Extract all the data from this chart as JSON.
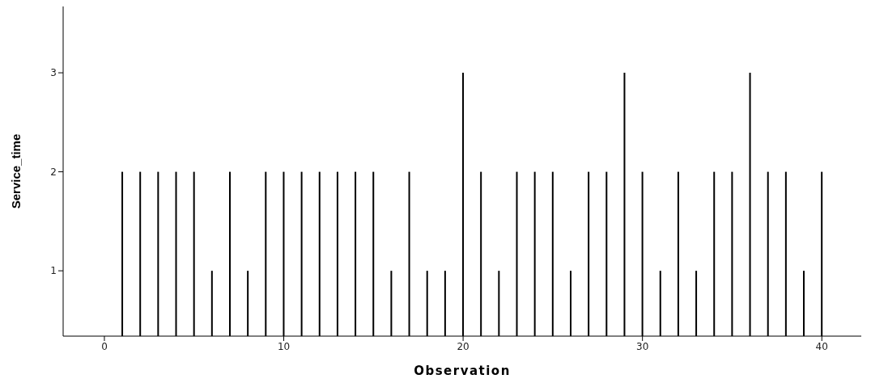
{
  "chart_data": {
    "type": "bar",
    "xlabel": "Observation",
    "ylabel": "Service_time",
    "x": [
      1,
      2,
      3,
      4,
      5,
      6,
      7,
      8,
      9,
      10,
      11,
      12,
      13,
      14,
      15,
      16,
      17,
      18,
      19,
      20,
      21,
      22,
      23,
      24,
      25,
      26,
      27,
      28,
      29,
      30,
      31,
      32,
      33,
      34,
      35,
      36,
      37,
      38,
      39,
      40
    ],
    "values": [
      2,
      2,
      2,
      2,
      2,
      1,
      2,
      1,
      2,
      2,
      2,
      2,
      2,
      2,
      2,
      1,
      2,
      1,
      1,
      3,
      2,
      1,
      2,
      2,
      2,
      1,
      2,
      2,
      3,
      2,
      1,
      2,
      1,
      2,
      2,
      3,
      2,
      2,
      1,
      2
    ],
    "color": "#000000",
    "xlim": [
      -2.3,
      42.2
    ],
    "xticks": [
      0,
      10,
      20,
      30,
      40
    ],
    "ylim": [
      0.34,
      3.67
    ],
    "yticks": [
      1,
      2,
      3
    ],
    "grid": false,
    "legend": false
  }
}
